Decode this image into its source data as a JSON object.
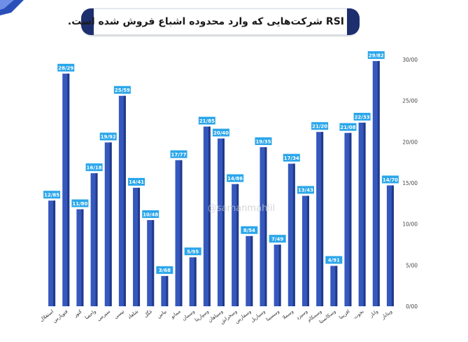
{
  "title": "RSI شرکت‌هایی که وارد محدوده اشباع فروش شده است.",
  "watermark": "@samanmahlil",
  "colors": {
    "bar": "#3558bd",
    "bar_dark": "#21398a",
    "label_bg": "#2aa6ea",
    "accent": "#1d2f6f"
  },
  "chart_data": {
    "type": "bar",
    "categories": [
      "استقلال",
      "فتوپارس",
      "کنور",
      "واحصا",
      "سپرمی",
      "تپسی",
      "شلعاد",
      "غگل",
      "بپاس",
      "ممانو",
      "وسمان",
      "وسپاریتا",
      "وسپاهان",
      "وسخراش",
      "وسفارس",
      "وسیاریل",
      "وسسیتا",
      "وسملا",
      "وسیزد",
      "وسمکام",
      "وسکانستا",
      "افزیما",
      "نخوت",
      "وانار",
      "وینانار"
    ],
    "values": [
      12.85,
      28.29,
      11.8,
      16.18,
      19.92,
      25.59,
      14.41,
      10.48,
      3.68,
      17.77,
      5.95,
      21.85,
      20.4,
      14.86,
      8.54,
      19.35,
      7.49,
      17.34,
      13.43,
      21.2,
      4.91,
      21.08,
      22.33,
      29.82,
      14.7
    ],
    "value_labels": [
      "12/85",
      "28/29",
      "11/80",
      "16/18",
      "19/92",
      "25/59",
      "14/41",
      "10/48",
      "3/68",
      "17/77",
      "5/95",
      "21/85",
      "20/40",
      "14/86",
      "8/54",
      "19/35",
      "7/49",
      "17/34",
      "13/43",
      "21/20",
      "4/91",
      "21/08",
      "22/33",
      "29/82",
      "14/70"
    ],
    "y_ticks": [
      0,
      5,
      10,
      15,
      20,
      25,
      30
    ],
    "y_tick_labels": [
      "0/00",
      "5/00",
      "10/00",
      "15/00",
      "20/00",
      "25/00",
      "30/00"
    ],
    "ylim": [
      0,
      30
    ],
    "y_axis_side": "right",
    "grid": false,
    "legend": "none"
  }
}
